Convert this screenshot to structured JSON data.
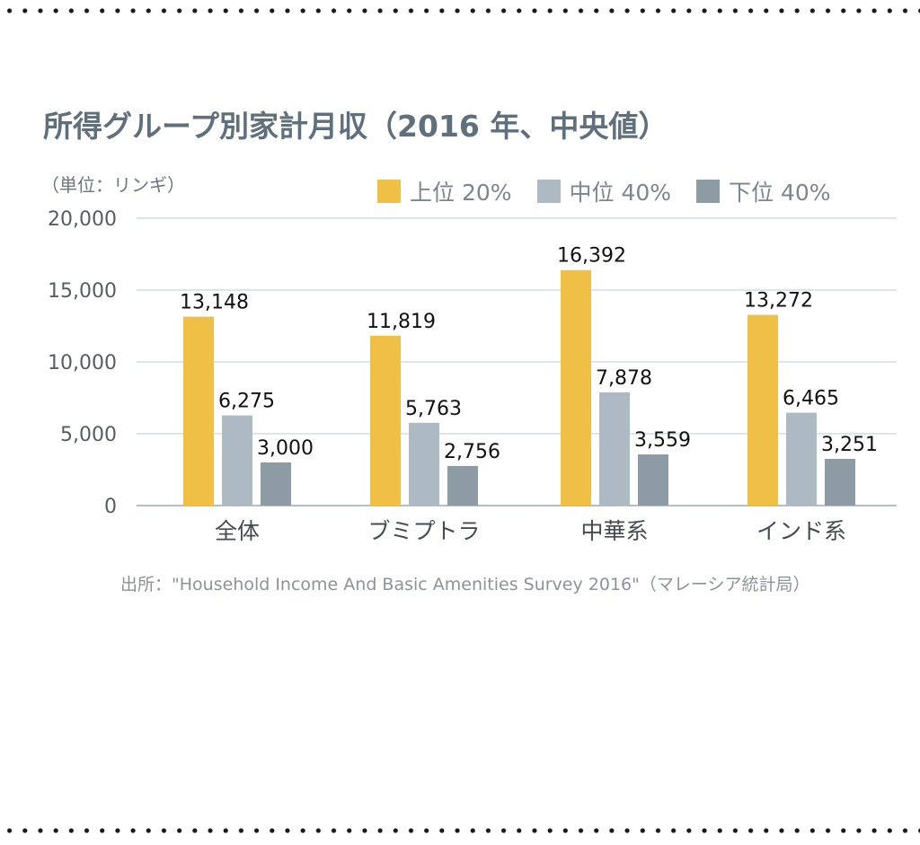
{
  "chart_data": {
    "type": "bar",
    "title": "所得グループ別家計月収（2016 年、中央値）",
    "unit_label": "（単位：リンギ）",
    "categories": [
      "全体",
      "ブミプトラ",
      "中華系",
      "インド系"
    ],
    "series": [
      {
        "name": "上位 20%",
        "color": "#f0bf45",
        "values": [
          13148,
          11819,
          16392,
          13272
        ],
        "labels": [
          "13,148",
          "11,819",
          "16,392",
          "13,272"
        ]
      },
      {
        "name": "中位 40%",
        "color": "#aebac3",
        "values": [
          6275,
          5763,
          7878,
          6465
        ],
        "labels": [
          "6,275",
          "5,763",
          "7,878",
          "6,465"
        ]
      },
      {
        "name": "下位 40%",
        "color": "#8d9ba5",
        "values": [
          3000,
          2756,
          3559,
          3251
        ],
        "labels": [
          "3,000",
          "2,756",
          "3,559",
          "3,251"
        ]
      }
    ],
    "ylim": [
      0,
      20000
    ],
    "yticks": [
      0,
      5000,
      10000,
      15000,
      20000
    ],
    "ytick_labels": [
      "0",
      "5,000",
      "10,000",
      "15,000",
      "20,000"
    ],
    "grid": true,
    "legend_position": "top-right",
    "source": "出所：\"Household Income And Basic Amenities Survey 2016\"（マレーシア統計局）"
  }
}
